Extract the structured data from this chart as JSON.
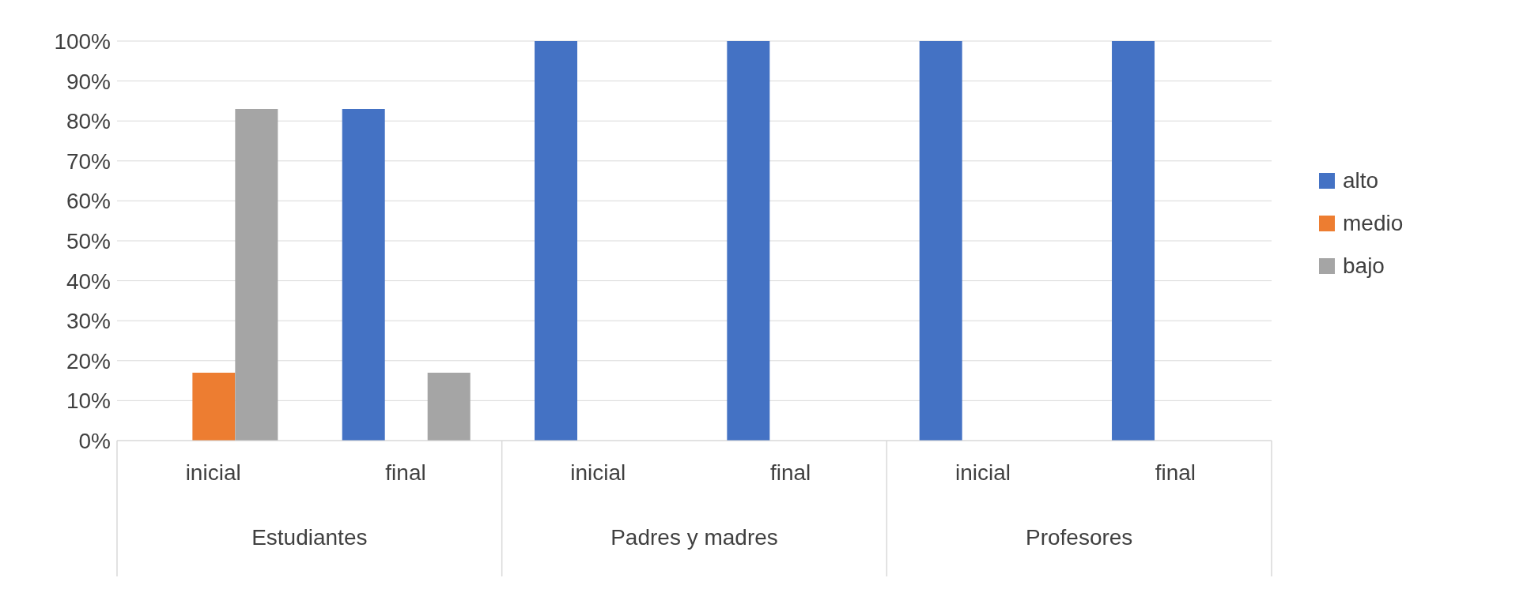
{
  "chart_data": {
    "type": "bar",
    "categories": [
      "inicial",
      "final",
      "inicial",
      "final",
      "inicial",
      "final"
    ],
    "annotations": [
      "Estudiantes",
      "Padres y madres",
      "Profesores"
    ],
    "series": [
      {
        "name": "alto",
        "color": "#4472c4",
        "values": [
          0,
          83,
          100,
          100,
          100,
          100
        ]
      },
      {
        "name": "medio",
        "color": "#ed7d31",
        "values": [
          17,
          0,
          0,
          0,
          0,
          0
        ]
      },
      {
        "name": "bajo",
        "color": "#a5a5a5",
        "values": [
          83,
          17,
          0,
          0,
          0,
          0
        ]
      }
    ],
    "ylim": [
      0,
      100
    ],
    "yticks": [
      {
        "value": 0,
        "label": "0%"
      },
      {
        "value": 10,
        "label": "10%"
      },
      {
        "value": 20,
        "label": "20%"
      },
      {
        "value": 30,
        "label": "30%"
      },
      {
        "value": 40,
        "label": "40%"
      },
      {
        "value": 50,
        "label": "50%"
      },
      {
        "value": 60,
        "label": "60%"
      },
      {
        "value": 70,
        "label": "70%"
      },
      {
        "value": 80,
        "label": "80%"
      },
      {
        "value": 90,
        "label": "90%"
      },
      {
        "value": 100,
        "label": "100%"
      }
    ],
    "grid": "y",
    "legend": "right"
  }
}
